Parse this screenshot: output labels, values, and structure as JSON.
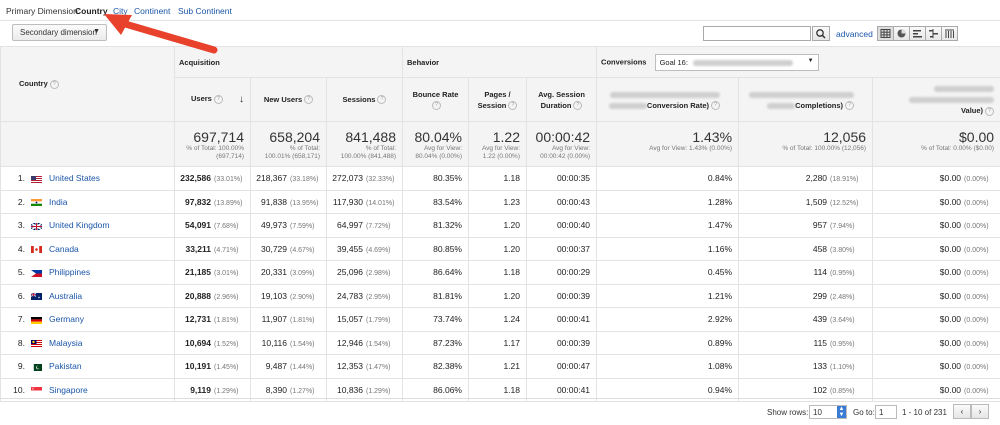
{
  "primary": {
    "label": "Primary Dimension:",
    "options": [
      "Country",
      "City",
      "Continent",
      "Sub Continent"
    ]
  },
  "toolbar": {
    "secondary_label": "Secondary dimension",
    "advanced_label": "advanced"
  },
  "groups": {
    "acquisition": "Acquisition",
    "behavior": "Behavior",
    "conversions": "Conversions",
    "goal_label": "Goal 16:"
  },
  "columns": {
    "country": "Country",
    "users": "Users",
    "new_users": "New Users",
    "sessions": "Sessions",
    "bounce": "Bounce Rate",
    "pages1": "Pages /",
    "pages2": "Session",
    "dur1": "Avg. Session",
    "dur2": "Duration",
    "conv_rate": "Conversion Rate)",
    "completions": "Completions)",
    "value": "Value)"
  },
  "totals": [
    {
      "big": "697,714",
      "sub": [
        "% of Total: 100.00%",
        "(697,714)"
      ]
    },
    {
      "big": "658,204",
      "sub": [
        "% of Total:",
        "100.01% (658,171)"
      ]
    },
    {
      "big": "841,488",
      "sub": [
        "% of Total:",
        "100.00% (841,488)"
      ]
    },
    {
      "big": "80.04%",
      "sub": [
        "Avg for View:",
        "80.04% (0.00%)"
      ]
    },
    {
      "big": "1.22",
      "sub": [
        "Avg for View:",
        "1.22 (0.00%)"
      ]
    },
    {
      "big": "00:00:42",
      "sub": [
        "Avg for View:",
        "00:00:42 (0.00%)"
      ]
    },
    {
      "big": "1.43%",
      "sub": [
        "Avg for View: 1.43% (0.00%)"
      ]
    },
    {
      "big": "12,056",
      "sub": [
        "% of Total: 100.00% (12,056)"
      ]
    },
    {
      "big": "$0.00",
      "sub": [
        "% of Total: 0.00% ($0.00)"
      ]
    }
  ],
  "rows": [
    {
      "idx": "1.",
      "country": "United States",
      "flag": "us",
      "users": "232,586",
      "users_pct": "(33.01%)",
      "new": "218,367",
      "new_pct": "(33.18%)",
      "sessions": "272,073",
      "sessions_pct": "(32.33%)",
      "bounce": "80.35%",
      "pages": "1.18",
      "dur": "00:00:35",
      "conv": "0.84%",
      "comp": "2,280",
      "comp_pct": "(18.91%)",
      "val": "$0.00",
      "val_pct": "(0.00%)"
    },
    {
      "idx": "2.",
      "country": "India",
      "flag": "in",
      "users": "97,832",
      "users_pct": "(13.89%)",
      "new": "91,838",
      "new_pct": "(13.95%)",
      "sessions": "117,930",
      "sessions_pct": "(14.01%)",
      "bounce": "83.54%",
      "pages": "1.23",
      "dur": "00:00:43",
      "conv": "1.28%",
      "comp": "1,509",
      "comp_pct": "(12.52%)",
      "val": "$0.00",
      "val_pct": "(0.00%)"
    },
    {
      "idx": "3.",
      "country": "United Kingdom",
      "flag": "gb",
      "users": "54,091",
      "users_pct": "(7.68%)",
      "new": "49,973",
      "new_pct": "(7.59%)",
      "sessions": "64,997",
      "sessions_pct": "(7.72%)",
      "bounce": "81.32%",
      "pages": "1.20",
      "dur": "00:00:40",
      "conv": "1.47%",
      "comp": "957",
      "comp_pct": "(7.94%)",
      "val": "$0.00",
      "val_pct": "(0.00%)"
    },
    {
      "idx": "4.",
      "country": "Canada",
      "flag": "ca",
      "users": "33,211",
      "users_pct": "(4.71%)",
      "new": "30,729",
      "new_pct": "(4.67%)",
      "sessions": "39,455",
      "sessions_pct": "(4.69%)",
      "bounce": "80.85%",
      "pages": "1.20",
      "dur": "00:00:37",
      "conv": "1.16%",
      "comp": "458",
      "comp_pct": "(3.80%)",
      "val": "$0.00",
      "val_pct": "(0.00%)"
    },
    {
      "idx": "5.",
      "country": "Philippines",
      "flag": "ph",
      "users": "21,185",
      "users_pct": "(3.01%)",
      "new": "20,331",
      "new_pct": "(3.09%)",
      "sessions": "25,096",
      "sessions_pct": "(2.98%)",
      "bounce": "86.64%",
      "pages": "1.18",
      "dur": "00:00:29",
      "conv": "0.45%",
      "comp": "114",
      "comp_pct": "(0.95%)",
      "val": "$0.00",
      "val_pct": "(0.00%)"
    },
    {
      "idx": "6.",
      "country": "Australia",
      "flag": "au",
      "users": "20,888",
      "users_pct": "(2.96%)",
      "new": "19,103",
      "new_pct": "(2.90%)",
      "sessions": "24,783",
      "sessions_pct": "(2.95%)",
      "bounce": "81.81%",
      "pages": "1.20",
      "dur": "00:00:39",
      "conv": "1.21%",
      "comp": "299",
      "comp_pct": "(2.48%)",
      "val": "$0.00",
      "val_pct": "(0.00%)"
    },
    {
      "idx": "7.",
      "country": "Germany",
      "flag": "de",
      "users": "12,731",
      "users_pct": "(1.81%)",
      "new": "11,907",
      "new_pct": "(1.81%)",
      "sessions": "15,057",
      "sessions_pct": "(1.79%)",
      "bounce": "73.74%",
      "pages": "1.24",
      "dur": "00:00:41",
      "conv": "2.92%",
      "comp": "439",
      "comp_pct": "(3.64%)",
      "val": "$0.00",
      "val_pct": "(0.00%)"
    },
    {
      "idx": "8.",
      "country": "Malaysia",
      "flag": "my",
      "users": "10,694",
      "users_pct": "(1.52%)",
      "new": "10,116",
      "new_pct": "(1.54%)",
      "sessions": "12,946",
      "sessions_pct": "(1.54%)",
      "bounce": "87.23%",
      "pages": "1.17",
      "dur": "00:00:39",
      "conv": "0.89%",
      "comp": "115",
      "comp_pct": "(0.95%)",
      "val": "$0.00",
      "val_pct": "(0.00%)"
    },
    {
      "idx": "9.",
      "country": "Pakistan",
      "flag": "pk",
      "users": "10,191",
      "users_pct": "(1.45%)",
      "new": "9,487",
      "new_pct": "(1.44%)",
      "sessions": "12,353",
      "sessions_pct": "(1.47%)",
      "bounce": "82.38%",
      "pages": "1.21",
      "dur": "00:00:47",
      "conv": "1.08%",
      "comp": "133",
      "comp_pct": "(1.10%)",
      "val": "$0.00",
      "val_pct": "(0.00%)"
    },
    {
      "idx": "10.",
      "country": "Singapore",
      "flag": "sg",
      "users": "9,119",
      "users_pct": "(1.29%)",
      "new": "8,390",
      "new_pct": "(1.27%)",
      "sessions": "10,836",
      "sessions_pct": "(1.29%)",
      "bounce": "86.06%",
      "pages": "1.18",
      "dur": "00:00:41",
      "conv": "0.94%",
      "comp": "102",
      "comp_pct": "(0.85%)",
      "val": "$0.00",
      "val_pct": "(0.00%)"
    }
  ],
  "footer": {
    "show_rows_label": "Show rows:",
    "show_rows_value": "10",
    "goto_label": "Go to:",
    "goto_value": "1",
    "range": "1 - 10 of 231",
    "prev": "‹",
    "next": "›"
  },
  "colors": {
    "link": "#1a55a8",
    "arrow": "#e8412c"
  }
}
